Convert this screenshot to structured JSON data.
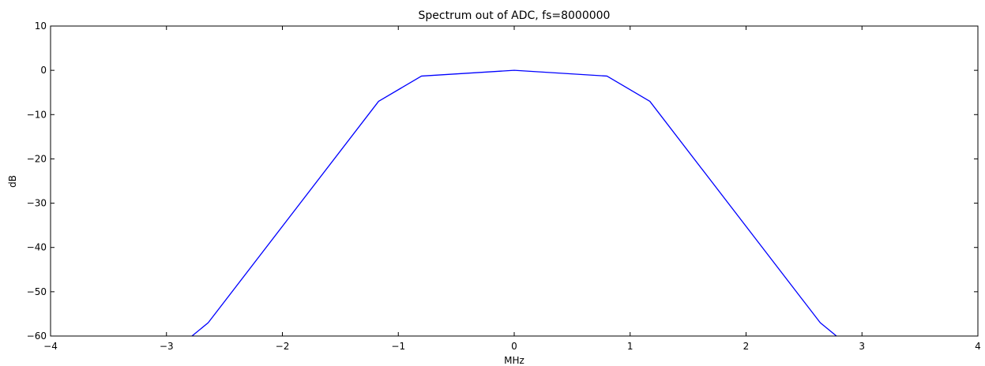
{
  "chart_data": {
    "type": "line",
    "title": "Spectrum out of ADC, fs=8000000",
    "xlabel": "MHz",
    "ylabel": "dB",
    "xlim": [
      -4,
      4
    ],
    "ylim": [
      -60,
      10
    ],
    "xticks": [
      -4,
      -3,
      -2,
      -1,
      0,
      1,
      2,
      3,
      4
    ],
    "yticks": [
      10,
      0,
      -10,
      -20,
      -30,
      -40,
      -50,
      -60
    ],
    "xtick_labels": [
      "−4",
      "−3",
      "−2",
      "−1",
      "0",
      "1",
      "2",
      "3",
      "4"
    ],
    "ytick_labels": [
      "10",
      "0",
      "−10",
      "−20",
      "−30",
      "−40",
      "−50",
      "−60"
    ],
    "grid": false,
    "series": [
      {
        "color": "#0000ff",
        "x": [
          -2.78,
          -2.64,
          -1.17,
          -0.8,
          0,
          0.8,
          1.17,
          2.64,
          2.78
        ],
        "y": [
          -60,
          -57,
          -7,
          -1.3,
          0,
          -1.3,
          -7,
          -57,
          -60
        ]
      }
    ]
  }
}
